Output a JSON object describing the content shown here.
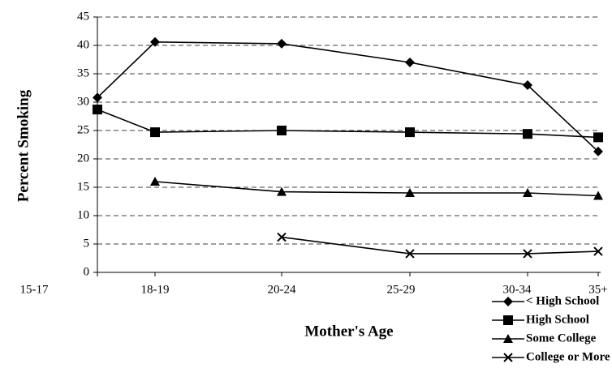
{
  "chart_data": {
    "type": "line",
    "x_label": "Mother's Age",
    "y_label": "Percent Smoking",
    "categories": [
      "15-17",
      "18-19",
      "20-24",
      "25-29",
      "30-34",
      "35+"
    ],
    "series": [
      {
        "name": "< High School",
        "color": "#000000",
        "marker": "diamond",
        "values": [
          30.8,
          40.6,
          40.3,
          37,
          33,
          21.3
        ]
      },
      {
        "name": "High School",
        "color": "#000000",
        "marker": "square",
        "values": [
          28.7,
          24.7,
          25,
          24.7,
          24.4,
          23.8
        ]
      },
      {
        "name": "Some College",
        "color": "#000000",
        "marker": "triangle",
        "values": [
          null,
          16,
          14.2,
          14,
          14,
          13.5
        ]
      },
      {
        "name": "College or More",
        "color": "#000000",
        "marker": "x",
        "values": [
          null,
          null,
          6.2,
          3.3,
          3.3,
          3.7
        ]
      }
    ],
    "ylim": [
      0,
      45
    ],
    "yticks": [
      0,
      5,
      10,
      15,
      20,
      25,
      30,
      35,
      40,
      45
    ],
    "grid": true,
    "legend": "bottom-right"
  }
}
